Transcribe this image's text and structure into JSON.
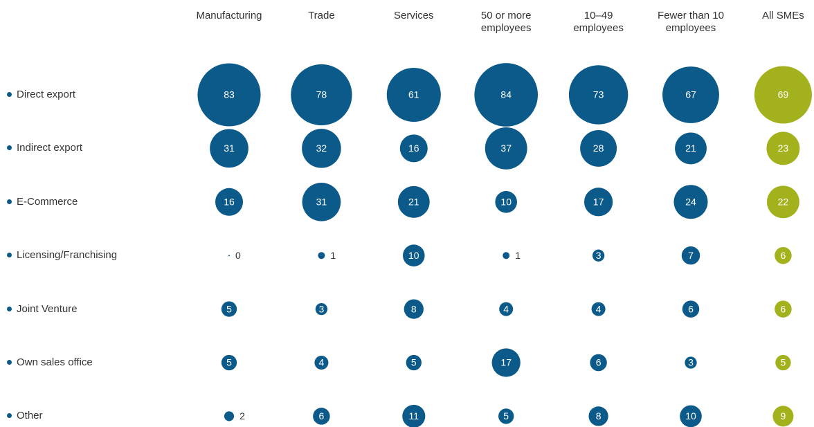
{
  "chart_data": {
    "type": "bubble-matrix",
    "categories": [
      "Direct export",
      "Indirect export",
      "E-Commerce",
      "Licensing/Franchising",
      "Joint Venture",
      "Own sales office",
      "Other"
    ],
    "series": [
      {
        "name": "Manufacturing",
        "color": "#0b5a8a",
        "values": [
          83,
          31,
          16,
          0,
          5,
          5,
          2
        ]
      },
      {
        "name": "Trade",
        "color": "#0b5a8a",
        "values": [
          78,
          32,
          31,
          1,
          3,
          4,
          6
        ]
      },
      {
        "name": "Services",
        "color": "#0b5a8a",
        "values": [
          61,
          16,
          21,
          10,
          8,
          5,
          11
        ]
      },
      {
        "name": "50 or more employees",
        "color": "#0b5a8a",
        "values": [
          84,
          37,
          10,
          1,
          4,
          17,
          5
        ]
      },
      {
        "name": "10–49 employees",
        "color": "#0b5a8a",
        "values": [
          73,
          28,
          17,
          3,
          4,
          6,
          8
        ]
      },
      {
        "name": "Fewer than 10 employees",
        "color": "#0b5a8a",
        "values": [
          67,
          21,
          24,
          7,
          6,
          3,
          10
        ]
      },
      {
        "name": "All SMEs",
        "color": "#a3b21c",
        "values": [
          69,
          23,
          22,
          6,
          6,
          5,
          9
        ]
      }
    ]
  }
}
